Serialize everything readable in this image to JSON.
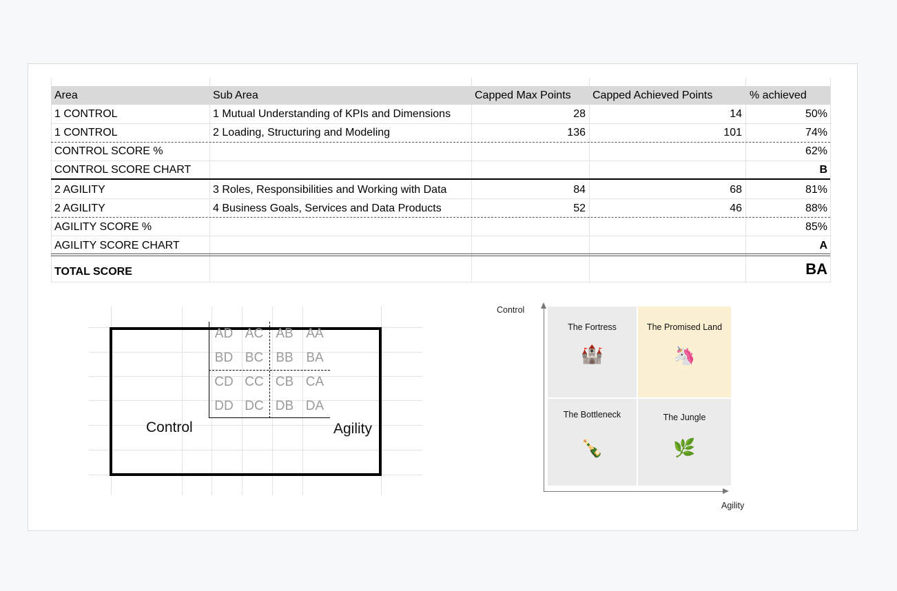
{
  "table": {
    "headers": [
      "Area",
      "Sub Area",
      "Capped Max Points",
      "Capped Achieved Points",
      "% achieved"
    ],
    "rows": [
      {
        "area": "1 CONTROL",
        "sub": "1 Mutual Understanding of KPIs and Dimensions",
        "max": "28",
        "achieved": "14",
        "pct": "50%"
      },
      {
        "area": "1 CONTROL",
        "sub": "2 Loading, Structuring and Modeling",
        "max": "136",
        "achieved": "101",
        "pct": "74%"
      },
      {
        "area": "CONTROL SCORE %",
        "sub": "",
        "max": "",
        "achieved": "",
        "pct": "62%"
      },
      {
        "area": "CONTROL SCORE CHART",
        "sub": "",
        "max": "",
        "achieved": "",
        "pct": "B"
      },
      {
        "area": "2 AGILITY",
        "sub": "3 Roles, Responsibilities and Working with Data",
        "max": "84",
        "achieved": "68",
        "pct": "81%"
      },
      {
        "area": "2 AGILITY",
        "sub": "4 Business Goals, Services and Data Products",
        "max": "52",
        "achieved": "46",
        "pct": "88%"
      },
      {
        "area": "AGILITY SCORE %",
        "sub": "",
        "max": "",
        "achieved": "",
        "pct": "85%"
      },
      {
        "area": "AGILITY SCORE CHART",
        "sub": "",
        "max": "",
        "achieved": "",
        "pct": "A"
      },
      {
        "area": "TOTAL SCORE",
        "sub": "",
        "max": "",
        "achieved": "",
        "pct": "BA"
      }
    ]
  },
  "matrix": {
    "y_label": "Control",
    "x_label": "Agility",
    "rows": [
      [
        "AD",
        "AC",
        "AB",
        "AA"
      ],
      [
        "BD",
        "BC",
        "BB",
        "BA"
      ],
      [
        "CD",
        "CC",
        "CB",
        "CA"
      ],
      [
        "DD",
        "DC",
        "DB",
        "DA"
      ]
    ]
  },
  "quadrant": {
    "y_label": "Control",
    "x_label": "Agility",
    "cells": [
      {
        "title": "The Fortress",
        "emoji": "🏰",
        "highlight": false
      },
      {
        "title": "The Promised Land",
        "emoji": "🦄",
        "highlight": true,
        "color": "#fbf1d2"
      },
      {
        "title": "The Bottleneck",
        "emoji": "🍾",
        "highlight": false
      },
      {
        "title": "The Jungle",
        "emoji": "🌿",
        "highlight": false
      }
    ]
  }
}
